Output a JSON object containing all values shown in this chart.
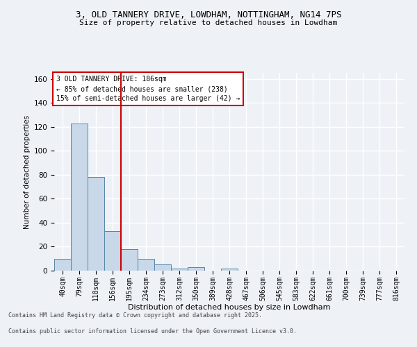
{
  "title_line1": "3, OLD TANNERY DRIVE, LOWDHAM, NOTTINGHAM, NG14 7PS",
  "title_line2": "Size of property relative to detached houses in Lowdham",
  "xlabel": "Distribution of detached houses by size in Lowdham",
  "ylabel": "Number of detached properties",
  "bin_labels": [
    "40sqm",
    "79sqm",
    "118sqm",
    "156sqm",
    "195sqm",
    "234sqm",
    "273sqm",
    "312sqm",
    "350sqm",
    "389sqm",
    "428sqm",
    "467sqm",
    "506sqm",
    "545sqm",
    "583sqm",
    "622sqm",
    "661sqm",
    "700sqm",
    "739sqm",
    "777sqm",
    "816sqm"
  ],
  "bin_values": [
    10,
    123,
    78,
    33,
    18,
    10,
    5,
    2,
    3,
    0,
    2,
    0,
    0,
    0,
    0,
    0,
    0,
    0,
    0,
    0,
    0
  ],
  "bar_color": "#c8d8e8",
  "bar_edge_color": "#5585a5",
  "ylim": [
    0,
    165
  ],
  "yticks": [
    0,
    20,
    40,
    60,
    80,
    100,
    120,
    140,
    160
  ],
  "annotation_title": "3 OLD TANNERY DRIVE: 186sqm",
  "annotation_line2": "← 85% of detached houses are smaller (238)",
  "annotation_line3": "15% of semi-detached houses are larger (42) →",
  "annotation_box_color": "#ffffff",
  "annotation_box_edge": "#cc0000",
  "red_line_color": "#cc0000",
  "footer_line1": "Contains HM Land Registry data © Crown copyright and database right 2025.",
  "footer_line2": "Contains public sector information licensed under the Open Government Licence v3.0.",
  "bg_color": "#eef2f7",
  "grid_color": "#ffffff"
}
